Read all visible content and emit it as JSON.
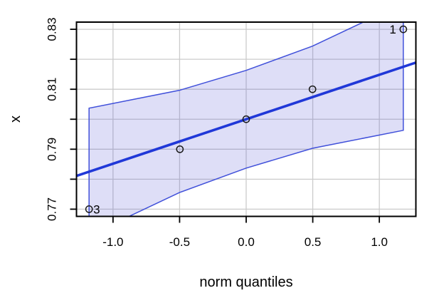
{
  "chart_data": {
    "type": "scatter",
    "variant": "qq-plot-with-confidence-envelope",
    "title": "",
    "xlabel": "norm quantiles",
    "ylabel": "x",
    "xlim": [
      -1.2744,
      1.2744
    ],
    "ylim": [
      0.7676,
      0.8324
    ],
    "grid": true,
    "legend": "none",
    "x_ticks": [
      {
        "v": -1.0,
        "label": "-1.0"
      },
      {
        "v": -0.5,
        "label": "-0.5"
      },
      {
        "v": 0.0,
        "label": "0.0"
      },
      {
        "v": 0.5,
        "label": "0.5"
      },
      {
        "v": 1.0,
        "label": "1.0"
      }
    ],
    "y_ticks": [
      {
        "v": 0.77,
        "label": "0.77"
      },
      {
        "v": 0.78,
        "label": ""
      },
      {
        "v": 0.79,
        "label": "0.79"
      },
      {
        "v": 0.8,
        "label": ""
      },
      {
        "v": 0.81,
        "label": "0.81"
      },
      {
        "v": 0.82,
        "label": ""
      },
      {
        "v": 0.83,
        "label": "0.83"
      }
    ],
    "points": [
      {
        "x": -1.18,
        "y": 0.77,
        "label": "3",
        "label_side": "right"
      },
      {
        "x": -0.498,
        "y": 0.79,
        "label": "",
        "label_side": ""
      },
      {
        "x": 0.0,
        "y": 0.8,
        "label": "",
        "label_side": ""
      },
      {
        "x": 0.498,
        "y": 0.81,
        "label": "",
        "label_side": ""
      },
      {
        "x": 1.18,
        "y": 0.83,
        "label": "1",
        "label_side": "left"
      }
    ],
    "fit_line": {
      "slope": 0.01483,
      "intercept": 0.8
    },
    "envelope_upper": [
      [
        -1.18,
        0.8037
      ],
      [
        -0.498,
        0.8097
      ],
      [
        0.0,
        0.8163
      ],
      [
        0.498,
        0.8244
      ],
      [
        1.18,
        0.8387
      ]
    ],
    "envelope_lower": [
      [
        -1.18,
        0.7613
      ],
      [
        -0.498,
        0.7756
      ],
      [
        0.0,
        0.7837
      ],
      [
        0.498,
        0.7903
      ],
      [
        1.18,
        0.7963
      ]
    ],
    "colors": {
      "fit_line": "#2038d8",
      "envelope_border": "#4050da",
      "envelope_fill": "rgba(88,92,214,0.20)",
      "grid": "#cbcbcb",
      "point_stroke": "#1a1a1a",
      "axis": "#000000",
      "background": "#ffffff"
    }
  }
}
